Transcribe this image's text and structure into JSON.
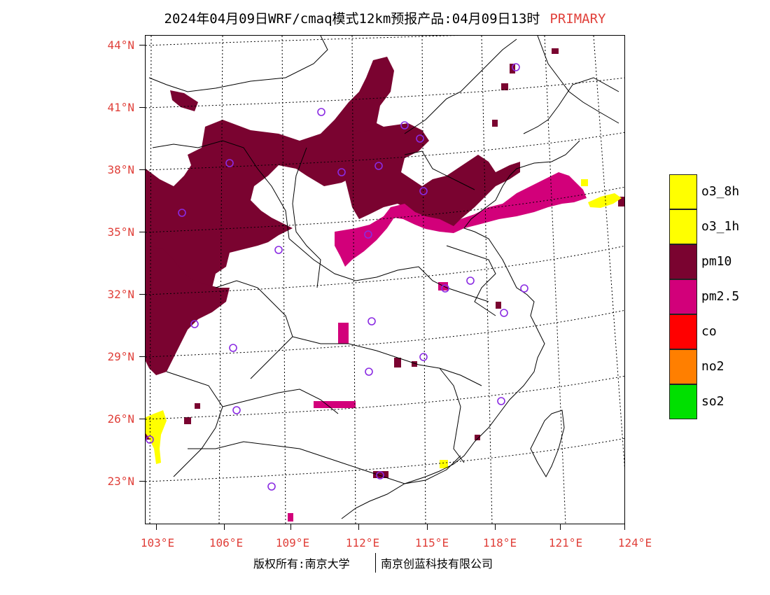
{
  "title": {
    "text": "2024年04月09日WRF/cmaq模式12km预报产品:04月09日13时",
    "tag": "PRIMARY"
  },
  "map": {
    "lon_range": [
      103,
      124
    ],
    "lat_range": [
      21,
      44.5
    ],
    "lat_labels": [
      "44°N",
      "41°N",
      "38°N",
      "35°N",
      "32°N",
      "29°N",
      "26°N",
      "23°N"
    ],
    "lon_labels": [
      "103°E",
      "106°E",
      "109°E",
      "112°E",
      "115°E",
      "118°E",
      "121°E",
      "124°E"
    ],
    "colors": {
      "pm10": "#7a0330",
      "pm2_5": "#d2007a",
      "o3": "#ffff00",
      "site": "#8a2be2"
    }
  },
  "legend": [
    {
      "label": "o3_8h",
      "color": "#ffff00"
    },
    {
      "label": "o3_1h",
      "color": "#ffff00"
    },
    {
      "label": "pm10",
      "color": "#7a0330"
    },
    {
      "label": "pm2.5",
      "color": "#d2007a"
    },
    {
      "label": "co",
      "color": "#ff0000"
    },
    {
      "label": "no2",
      "color": "#ff7f00"
    },
    {
      "label": "so2",
      "color": "#00e000"
    }
  ],
  "credit": {
    "left": "版权所有:南京大学",
    "right": "南京创蓝科技有限公司"
  }
}
